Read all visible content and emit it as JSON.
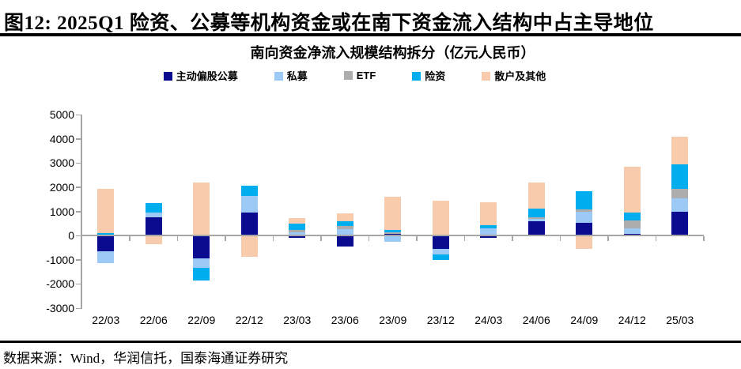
{
  "figure": {
    "title": "图12: 2025Q1 险资、公募等机构资金或在南下资金流入结构中占主导地位",
    "source": "数据来源：Wind，华润信托，国泰海通证券研究"
  },
  "chart_data": {
    "type": "bar",
    "stacked": true,
    "title": "南向资金净流入规模结构拆分（亿元人民币）",
    "categories": [
      "22/03",
      "22/06",
      "22/09",
      "22/12",
      "23/03",
      "23/06",
      "23/09",
      "23/12",
      "24/03",
      "24/06",
      "24/09",
      "24/12",
      "25/03"
    ],
    "series": [
      {
        "name": "主动偏股公募",
        "color": "#0b0b8f",
        "values": [
          -650,
          760,
          -950,
          950,
          -90,
          -460,
          60,
          -550,
          -100,
          600,
          530,
          80,
          1000
        ]
      },
      {
        "name": "私募",
        "color": "#9cc9f5",
        "values": [
          -500,
          180,
          -400,
          690,
          140,
          270,
          -270,
          -220,
          290,
          80,
          440,
          230,
          550
        ]
      },
      {
        "name": "ETF",
        "color": "#adadad",
        "values": [
          0,
          0,
          0,
          0,
          80,
          130,
          70,
          0,
          0,
          90,
          100,
          320,
          370
        ]
      },
      {
        "name": "险资",
        "color": "#00aeef",
        "values": [
          100,
          400,
          -500,
          420,
          260,
          180,
          90,
          -240,
          130,
          350,
          750,
          330,
          1030
        ]
      },
      {
        "name": "散户及其他",
        "color": "#f8cbad",
        "values": [
          1830,
          -350,
          2200,
          -870,
          230,
          330,
          1400,
          1450,
          950,
          1080,
          -540,
          1870,
          1150
        ]
      }
    ],
    "ylim": [
      -3000,
      5000
    ],
    "ytick_step": 1000,
    "grid": false,
    "legend_position": "top",
    "axis_color": "#a6a6a6"
  }
}
